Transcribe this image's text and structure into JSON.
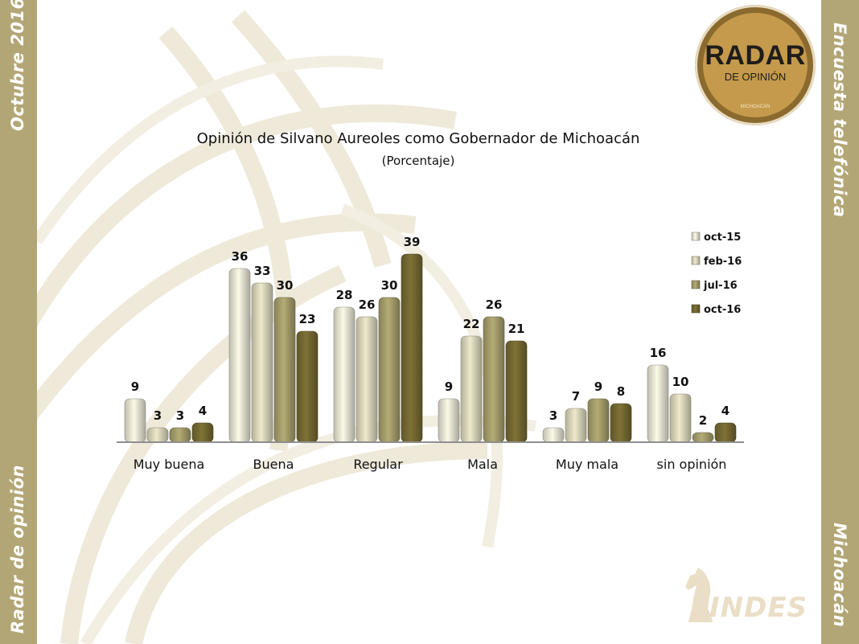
{
  "side_labels": {
    "top_left": "Octubre 2016",
    "bottom_left": "Radar de opinión",
    "top_right": "Encuesta telefónica",
    "bottom_right": "Michoacán"
  },
  "logo": {
    "title": "RADAR",
    "subtitle": "DE OPINIÓN",
    "state": "MICHOACÁN"
  },
  "footer_logo": {
    "text": "INDES"
  },
  "colors": {
    "sidebar": "#b3a676",
    "series": [
      "#e9e7d6",
      "#dcd8bd",
      "#a79f6c",
      "#766a32"
    ]
  },
  "chart_data": {
    "type": "bar",
    "title": "Opinión de Silvano Aureoles como Gobernador de Michoacán",
    "subtitle": "(Porcentaje)",
    "categories": [
      "Muy buena",
      "Buena",
      "Regular",
      "Mala",
      "Muy mala",
      "sin opinión"
    ],
    "series": [
      {
        "name": "oct-15",
        "values": [
          9,
          36,
          28,
          9,
          3,
          16
        ]
      },
      {
        "name": "feb-16",
        "values": [
          3,
          33,
          26,
          22,
          7,
          10
        ]
      },
      {
        "name": "jul-16",
        "values": [
          3,
          30,
          30,
          26,
          9,
          2
        ]
      },
      {
        "name": "oct-16",
        "values": [
          4,
          23,
          39,
          21,
          8,
          4
        ]
      }
    ],
    "ylim": [
      0,
      40
    ],
    "grid": false,
    "legend": "top-right",
    "data_labels": true
  }
}
